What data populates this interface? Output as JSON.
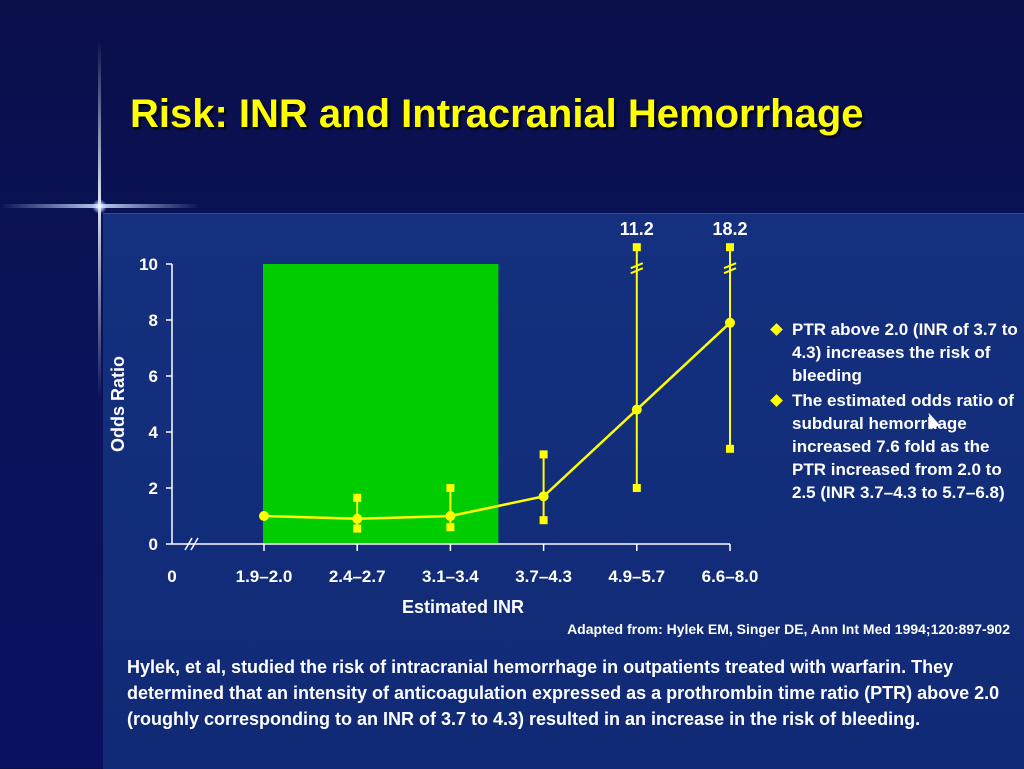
{
  "slide": {
    "title": "Risk:  INR and Intracranial Hemorrhage",
    "bullets": [
      "PTR above 2.0 (INR of 3.7 to 4.3) increases the risk of bleeding",
      "The estimated odds ratio of subdural hemorrhage increased 7.6 fold as the PTR increased from 2.0 to 2.5 (INR 3.7–4.3 to 5.7–6.8)"
    ],
    "source": "Adapted from: Hylek EM, Singer DE, Ann Int Med 1994;120:897-902",
    "caption": "Hylek, et al, studied the risk of intracranial hemorrhage in outpatients treated with warfarin. They determined that an intensity of anticoagulation expressed as a prothrombin time ratio (PTR) above 2.0 (roughly corresponding to an INR of 3.7 to 4.3) resulted in an increase in the risk of bleeding."
  },
  "colors": {
    "accent": "#ffff00",
    "therapeutic_band": "#00cc00",
    "panel": "#14307e"
  },
  "chart_data": {
    "type": "line",
    "xlabel": "Estimated INR",
    "ylabel": "Odds Ratio",
    "categories": [
      "1.9–2.0",
      "2.4–2.7",
      "3.1–3.4",
      "3.7–4.3",
      "4.9–5.7",
      "6.6–8.0"
    ],
    "x_origin_label": "0",
    "ylim": [
      0,
      10
    ],
    "yticks": [
      0,
      2,
      4,
      6,
      8,
      10
    ],
    "ytick_labels": [
      "0",
      "2",
      "4",
      "6",
      "8",
      "10"
    ],
    "shaded_band": {
      "from_category": "1.9–2.0",
      "to_category": "3.1–3.4",
      "y_top": 10
    },
    "series": [
      {
        "values": [
          1.0,
          0.9,
          1.0,
          1.7,
          4.8,
          7.9
        ],
        "ci_low": [
          null,
          0.55,
          0.6,
          0.85,
          2.0,
          3.4
        ],
        "ci_high": [
          null,
          1.65,
          2.0,
          3.2,
          10.6,
          10.6
        ]
      }
    ],
    "ci_break_labels": [
      null,
      null,
      null,
      null,
      "11.2",
      "18.2"
    ],
    "grid": false,
    "legend": "none"
  }
}
